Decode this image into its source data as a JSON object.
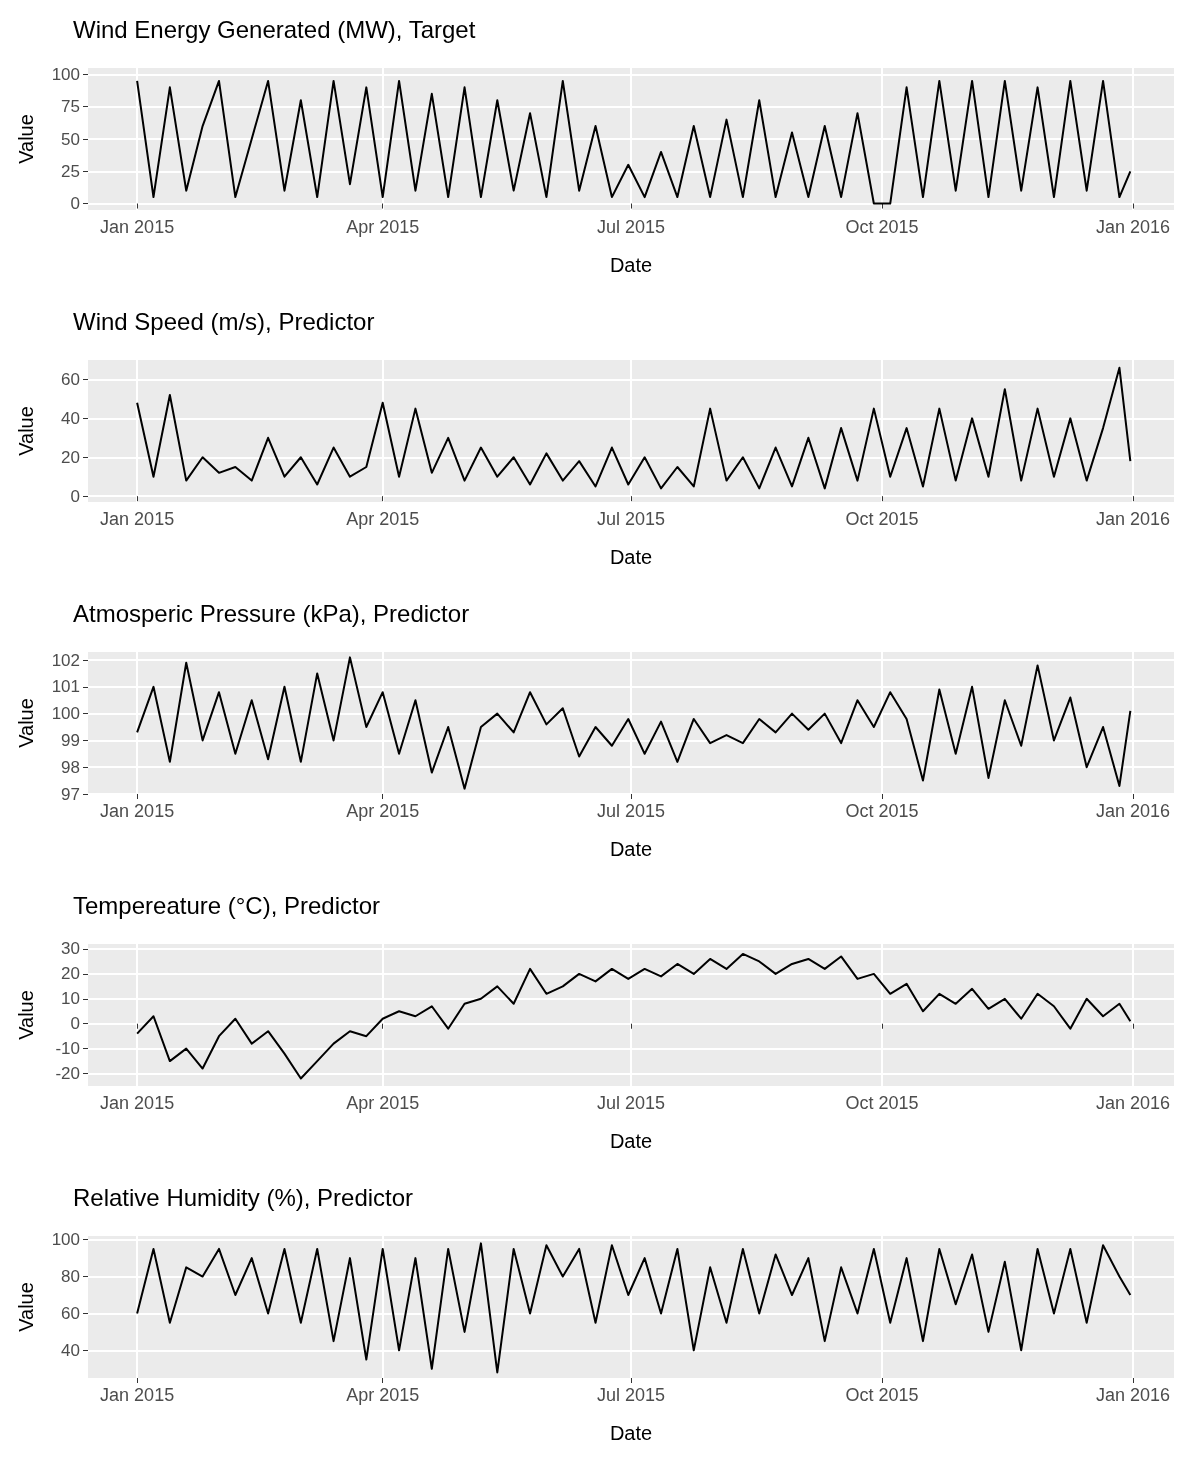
{
  "chart_data": [
    {
      "type": "line",
      "title": "Wind Energy Generated (MW), Target",
      "xlabel": "Date",
      "ylabel": "Value",
      "color": "#000000",
      "grid": true,
      "x": [
        "2015-01-01",
        "2015-01-07",
        "2015-01-13",
        "2015-01-19",
        "2015-01-25",
        "2015-01-31",
        "2015-02-06",
        "2015-02-12",
        "2015-02-18",
        "2015-02-24",
        "2015-03-02",
        "2015-03-08",
        "2015-03-14",
        "2015-03-20",
        "2015-03-26",
        "2015-04-01",
        "2015-04-07",
        "2015-04-13",
        "2015-04-19",
        "2015-04-25",
        "2015-05-01",
        "2015-05-07",
        "2015-05-13",
        "2015-05-19",
        "2015-05-25",
        "2015-05-31",
        "2015-06-06",
        "2015-06-12",
        "2015-06-18",
        "2015-06-24",
        "2015-06-30",
        "2015-07-06",
        "2015-07-12",
        "2015-07-18",
        "2015-07-24",
        "2015-07-30",
        "2015-08-05",
        "2015-08-11",
        "2015-08-17",
        "2015-08-23",
        "2015-08-29",
        "2015-09-04",
        "2015-09-10",
        "2015-09-16",
        "2015-09-22",
        "2015-09-28",
        "2015-10-04",
        "2015-10-10",
        "2015-10-16",
        "2015-10-22",
        "2015-10-28",
        "2015-11-03",
        "2015-11-09",
        "2015-11-15",
        "2015-11-21",
        "2015-11-27",
        "2015-12-03",
        "2015-12-09",
        "2015-12-15",
        "2015-12-21",
        "2015-12-27",
        "2015-12-31"
      ],
      "values": [
        95,
        5,
        90,
        10,
        60,
        95,
        5,
        50,
        95,
        10,
        80,
        5,
        95,
        15,
        90,
        5,
        95,
        10,
        85,
        5,
        90,
        5,
        80,
        10,
        70,
        5,
        95,
        10,
        60,
        5,
        30,
        5,
        40,
        5,
        60,
        5,
        65,
        5,
        80,
        5,
        55,
        5,
        60,
        5,
        70,
        0,
        0,
        90,
        5,
        95,
        10,
        95,
        5,
        95,
        10,
        90,
        5,
        95,
        10,
        95,
        5,
        25
      ],
      "xlim": [
        "2014-12-14",
        "2016-01-16"
      ],
      "xticks": [
        {
          "value": "2015-01-01",
          "label": "Jan 2015"
        },
        {
          "value": "2015-04-01",
          "label": "Apr 2015"
        },
        {
          "value": "2015-07-01",
          "label": "Jul 2015"
        },
        {
          "value": "2015-10-01",
          "label": "Oct 2015"
        },
        {
          "value": "2016-01-01",
          "label": "Jan 2016"
        }
      ],
      "ylim": [
        -5,
        105
      ],
      "yticks": [
        0,
        25,
        50,
        75,
        100
      ]
    },
    {
      "type": "line",
      "title": "Wind Speed (m/s), Predictor",
      "xlabel": "Date",
      "ylabel": "Value",
      "color": "#000000",
      "grid": true,
      "x": [
        "2015-01-01",
        "2015-01-07",
        "2015-01-13",
        "2015-01-19",
        "2015-01-25",
        "2015-01-31",
        "2015-02-06",
        "2015-02-12",
        "2015-02-18",
        "2015-02-24",
        "2015-03-02",
        "2015-03-08",
        "2015-03-14",
        "2015-03-20",
        "2015-03-26",
        "2015-04-01",
        "2015-04-07",
        "2015-04-13",
        "2015-04-19",
        "2015-04-25",
        "2015-05-01",
        "2015-05-07",
        "2015-05-13",
        "2015-05-19",
        "2015-05-25",
        "2015-05-31",
        "2015-06-06",
        "2015-06-12",
        "2015-06-18",
        "2015-06-24",
        "2015-06-30",
        "2015-07-06",
        "2015-07-12",
        "2015-07-18",
        "2015-07-24",
        "2015-07-30",
        "2015-08-05",
        "2015-08-11",
        "2015-08-17",
        "2015-08-23",
        "2015-08-29",
        "2015-09-04",
        "2015-09-10",
        "2015-09-16",
        "2015-09-22",
        "2015-09-28",
        "2015-10-04",
        "2015-10-10",
        "2015-10-16",
        "2015-10-22",
        "2015-10-28",
        "2015-11-03",
        "2015-11-09",
        "2015-11-15",
        "2015-11-21",
        "2015-11-27",
        "2015-12-03",
        "2015-12-09",
        "2015-12-15",
        "2015-12-21",
        "2015-12-27",
        "2015-12-31"
      ],
      "values": [
        48,
        10,
        52,
        8,
        20,
        12,
        15,
        8,
        30,
        10,
        20,
        6,
        25,
        10,
        15,
        48,
        10,
        45,
        12,
        30,
        8,
        25,
        10,
        20,
        6,
        22,
        8,
        18,
        5,
        25,
        6,
        20,
        4,
        15,
        5,
        45,
        8,
        20,
        4,
        25,
        5,
        30,
        4,
        35,
        8,
        45,
        10,
        35,
        5,
        45,
        8,
        40,
        10,
        55,
        8,
        45,
        10,
        40,
        8,
        35,
        66,
        18
      ],
      "xlim": [
        "2014-12-14",
        "2016-01-16"
      ],
      "xticks": [
        {
          "value": "2015-01-01",
          "label": "Jan 2015"
        },
        {
          "value": "2015-04-01",
          "label": "Apr 2015"
        },
        {
          "value": "2015-07-01",
          "label": "Jul 2015"
        },
        {
          "value": "2015-10-01",
          "label": "Oct 2015"
        },
        {
          "value": "2016-01-01",
          "label": "Jan 2016"
        }
      ],
      "ylim": [
        -3,
        70
      ],
      "yticks": [
        0,
        20,
        40,
        60
      ]
    },
    {
      "type": "line",
      "title": "Atmosperic Pressure (kPa), Predictor",
      "xlabel": "Date",
      "ylabel": "Value",
      "color": "#000000",
      "grid": true,
      "x": [
        "2015-01-01",
        "2015-01-07",
        "2015-01-13",
        "2015-01-19",
        "2015-01-25",
        "2015-01-31",
        "2015-02-06",
        "2015-02-12",
        "2015-02-18",
        "2015-02-24",
        "2015-03-02",
        "2015-03-08",
        "2015-03-14",
        "2015-03-20",
        "2015-03-26",
        "2015-04-01",
        "2015-04-07",
        "2015-04-13",
        "2015-04-19",
        "2015-04-25",
        "2015-05-01",
        "2015-05-07",
        "2015-05-13",
        "2015-05-19",
        "2015-05-25",
        "2015-05-31",
        "2015-06-06",
        "2015-06-12",
        "2015-06-18",
        "2015-06-24",
        "2015-06-30",
        "2015-07-06",
        "2015-07-12",
        "2015-07-18",
        "2015-07-24",
        "2015-07-30",
        "2015-08-05",
        "2015-08-11",
        "2015-08-17",
        "2015-08-23",
        "2015-08-29",
        "2015-09-04",
        "2015-09-10",
        "2015-09-16",
        "2015-09-22",
        "2015-09-28",
        "2015-10-04",
        "2015-10-10",
        "2015-10-16",
        "2015-10-22",
        "2015-10-28",
        "2015-11-03",
        "2015-11-09",
        "2015-11-15",
        "2015-11-21",
        "2015-11-27",
        "2015-12-03",
        "2015-12-09",
        "2015-12-15",
        "2015-12-21",
        "2015-12-27",
        "2015-12-31"
      ],
      "values": [
        99.3,
        101,
        98.2,
        101.9,
        99,
        100.8,
        98.5,
        100.5,
        98.3,
        101,
        98.2,
        101.5,
        99,
        102.1,
        99.5,
        100.8,
        98.5,
        100.5,
        97.8,
        99.5,
        97.2,
        99.5,
        100,
        99.3,
        100.8,
        99.6,
        100.2,
        98.4,
        99.5,
        98.8,
        99.8,
        98.5,
        99.7,
        98.2,
        99.8,
        98.9,
        99.2,
        98.9,
        99.8,
        99.3,
        100,
        99.4,
        100,
        98.9,
        100.5,
        99.5,
        100.8,
        99.8,
        97.5,
        100.9,
        98.5,
        101,
        97.6,
        100.5,
        98.8,
        101.8,
        99,
        100.6,
        98,
        99.5,
        97.3,
        100.1
      ],
      "xlim": [
        "2014-12-14",
        "2016-01-16"
      ],
      "xticks": [
        {
          "value": "2015-01-01",
          "label": "Jan 2015"
        },
        {
          "value": "2015-04-01",
          "label": "Apr 2015"
        },
        {
          "value": "2015-07-01",
          "label": "Jul 2015"
        },
        {
          "value": "2015-10-01",
          "label": "Oct 2015"
        },
        {
          "value": "2016-01-01",
          "label": "Jan 2016"
        }
      ],
      "ylim": [
        97,
        102.3
      ],
      "yticks": [
        97,
        98,
        99,
        100,
        101,
        102
      ]
    },
    {
      "type": "line",
      "title": "Tempereature (°C), Predictor",
      "xlabel": "Date",
      "ylabel": "Value",
      "color": "#000000",
      "grid": true,
      "x": [
        "2015-01-01",
        "2015-01-07",
        "2015-01-13",
        "2015-01-19",
        "2015-01-25",
        "2015-01-31",
        "2015-02-06",
        "2015-02-12",
        "2015-02-18",
        "2015-02-24",
        "2015-03-02",
        "2015-03-08",
        "2015-03-14",
        "2015-03-20",
        "2015-03-26",
        "2015-04-01",
        "2015-04-07",
        "2015-04-13",
        "2015-04-19",
        "2015-04-25",
        "2015-05-01",
        "2015-05-07",
        "2015-05-13",
        "2015-05-19",
        "2015-05-25",
        "2015-05-31",
        "2015-06-06",
        "2015-06-12",
        "2015-06-18",
        "2015-06-24",
        "2015-06-30",
        "2015-07-06",
        "2015-07-12",
        "2015-07-18",
        "2015-07-24",
        "2015-07-30",
        "2015-08-05",
        "2015-08-11",
        "2015-08-17",
        "2015-08-23",
        "2015-08-29",
        "2015-09-04",
        "2015-09-10",
        "2015-09-16",
        "2015-09-22",
        "2015-09-28",
        "2015-10-04",
        "2015-10-10",
        "2015-10-16",
        "2015-10-22",
        "2015-10-28",
        "2015-11-03",
        "2015-11-09",
        "2015-11-15",
        "2015-11-21",
        "2015-11-27",
        "2015-12-03",
        "2015-12-09",
        "2015-12-15",
        "2015-12-21",
        "2015-12-27",
        "2015-12-31"
      ],
      "values": [
        -4,
        3,
        -15,
        -10,
        -18,
        -5,
        2,
        -8,
        -3,
        -12,
        -22,
        -15,
        -8,
        -3,
        -5,
        2,
        5,
        3,
        7,
        -2,
        8,
        10,
        15,
        8,
        22,
        12,
        15,
        20,
        17,
        22,
        18,
        22,
        19,
        24,
        20,
        26,
        22,
        28,
        25,
        20,
        24,
        26,
        22,
        27,
        18,
        20,
        12,
        16,
        5,
        12,
        8,
        14,
        6,
        10,
        2,
        12,
        7,
        -2,
        10,
        3,
        8,
        1
      ],
      "xlim": [
        "2014-12-14",
        "2016-01-16"
      ],
      "xticks": [
        {
          "value": "2015-01-01",
          "label": "Jan 2015"
        },
        {
          "value": "2015-04-01",
          "label": "Apr 2015"
        },
        {
          "value": "2015-07-01",
          "label": "Jul 2015"
        },
        {
          "value": "2015-10-01",
          "label": "Oct 2015"
        },
        {
          "value": "2016-01-01",
          "label": "Jan 2016"
        }
      ],
      "ylim": [
        -25,
        32
      ],
      "yticks": [
        -20,
        -10,
        0,
        10,
        20,
        30
      ]
    },
    {
      "type": "line",
      "title": "Relative Humidity (%), Predictor",
      "xlabel": "Date",
      "ylabel": "Value",
      "color": "#000000",
      "grid": true,
      "x": [
        "2015-01-01",
        "2015-01-07",
        "2015-01-13",
        "2015-01-19",
        "2015-01-25",
        "2015-01-31",
        "2015-02-06",
        "2015-02-12",
        "2015-02-18",
        "2015-02-24",
        "2015-03-02",
        "2015-03-08",
        "2015-03-14",
        "2015-03-20",
        "2015-03-26",
        "2015-04-01",
        "2015-04-07",
        "2015-04-13",
        "2015-04-19",
        "2015-04-25",
        "2015-05-01",
        "2015-05-07",
        "2015-05-13",
        "2015-05-19",
        "2015-05-25",
        "2015-05-31",
        "2015-06-06",
        "2015-06-12",
        "2015-06-18",
        "2015-06-24",
        "2015-06-30",
        "2015-07-06",
        "2015-07-12",
        "2015-07-18",
        "2015-07-24",
        "2015-07-30",
        "2015-08-05",
        "2015-08-11",
        "2015-08-17",
        "2015-08-23",
        "2015-08-29",
        "2015-09-04",
        "2015-09-10",
        "2015-09-16",
        "2015-09-22",
        "2015-09-28",
        "2015-10-04",
        "2015-10-10",
        "2015-10-16",
        "2015-10-22",
        "2015-10-28",
        "2015-11-03",
        "2015-11-09",
        "2015-11-15",
        "2015-11-21",
        "2015-11-27",
        "2015-12-03",
        "2015-12-09",
        "2015-12-15",
        "2015-12-21",
        "2015-12-27",
        "2015-12-31"
      ],
      "values": [
        60,
        95,
        55,
        85,
        80,
        95,
        70,
        90,
        60,
        95,
        55,
        95,
        45,
        90,
        35,
        95,
        40,
        90,
        30,
        95,
        50,
        98,
        28,
        95,
        60,
        97,
        80,
        95,
        55,
        97,
        70,
        90,
        60,
        95,
        40,
        85,
        55,
        95,
        60,
        92,
        70,
        90,
        45,
        85,
        60,
        95,
        55,
        90,
        45,
        95,
        65,
        92,
        50,
        88,
        40,
        95,
        60,
        95,
        55,
        97,
        80,
        70
      ],
      "xlim": [
        "2014-12-14",
        "2016-01-16"
      ],
      "xticks": [
        {
          "value": "2015-01-01",
          "label": "Jan 2015"
        },
        {
          "value": "2015-04-01",
          "label": "Apr 2015"
        },
        {
          "value": "2015-07-01",
          "label": "Jul 2015"
        },
        {
          "value": "2015-10-01",
          "label": "Oct 2015"
        },
        {
          "value": "2016-01-01",
          "label": "Jan 2016"
        }
      ],
      "ylim": [
        25,
        102
      ],
      "yticks": [
        40,
        60,
        80,
        100
      ]
    }
  ]
}
